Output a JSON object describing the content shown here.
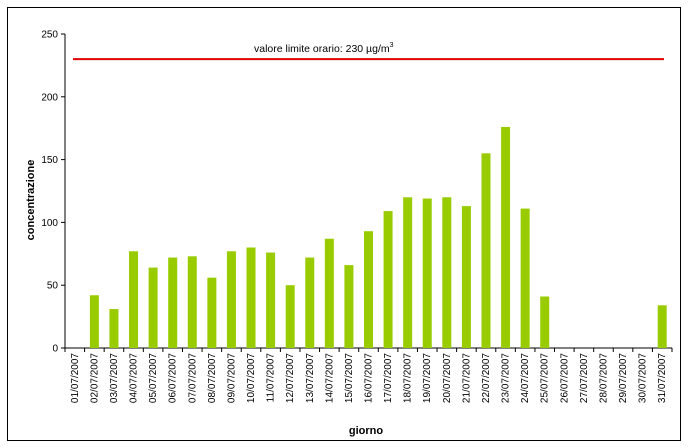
{
  "chart_data": {
    "type": "bar",
    "title": "",
    "xlabel": "giorno",
    "ylabel": "concentrazione",
    "ylim": [
      0,
      250
    ],
    "yticks": [
      0,
      50,
      100,
      150,
      200,
      250
    ],
    "grid": false,
    "legend": "none",
    "bar_color": "#99cc00",
    "reference_line": {
      "value": 230,
      "label_prefix": "valore limite orario: 230 µg/m",
      "label_sup": "3",
      "color": "#e00000"
    },
    "categories": [
      "01/07/2007",
      "02/07/2007",
      "03/07/2007",
      "04/07/2007",
      "05/07/2007",
      "06/07/2007",
      "07/07/2007",
      "08/07/2007",
      "09/07/2007",
      "10/07/2007",
      "11/07/2007",
      "12/07/2007",
      "13/07/2007",
      "14/07/2007",
      "15/07/2007",
      "16/07/2007",
      "17/07/2007",
      "18/07/2007",
      "19/07/2007",
      "20/07/2007",
      "21/07/2007",
      "22/07/2007",
      "23/07/2007",
      "24/07/2007",
      "25/07/2007",
      "26/07/2007",
      "27/07/2007",
      "28/07/2007",
      "29/07/2007",
      "30/07/2007",
      "31/07/2007"
    ],
    "values": [
      null,
      42,
      31,
      77,
      64,
      72,
      73,
      56,
      77,
      80,
      76,
      50,
      72,
      87,
      66,
      93,
      109,
      120,
      119,
      120,
      113,
      155,
      176,
      111,
      41,
      null,
      null,
      null,
      null,
      null,
      34
    ]
  }
}
